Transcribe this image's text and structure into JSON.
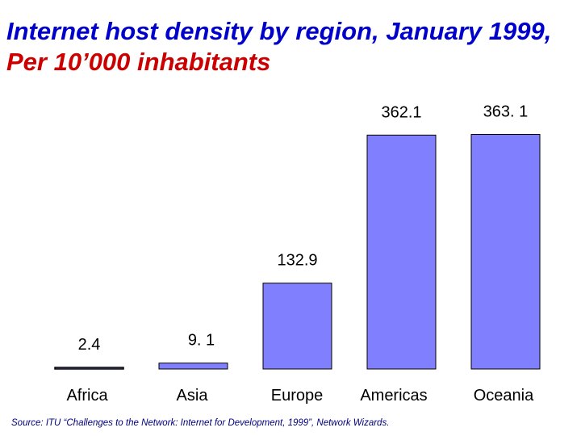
{
  "title_part1": "Internet host density by region, January 1999, ",
  "title_part2": "Per 10’000 inhabitants",
  "source": "Source:  ITU “Challenges to the Network: Internet for Development, 1999”, Network Wizards.",
  "colors": {
    "bar_fill": "#8080ff",
    "bar_stroke": "#000000",
    "title": "#0000cc",
    "accent": "#cc0000"
  },
  "chart_data": {
    "type": "bar",
    "title": "Internet host density by region, January 1999, Per 10’000 inhabitants",
    "categories": [
      "Africa",
      "Asia",
      "Europe",
      "Americas",
      "Oceania"
    ],
    "values": [
      2.4,
      9.1,
      132.9,
      362.1,
      363.1
    ],
    "data_labels": [
      "2.4",
      "9. 1",
      "132.9",
      "362.1",
      "363. 1"
    ],
    "xlabel": "",
    "ylabel": "",
    "ylim": [
      0,
      400
    ],
    "grid": false,
    "legend": "none"
  }
}
